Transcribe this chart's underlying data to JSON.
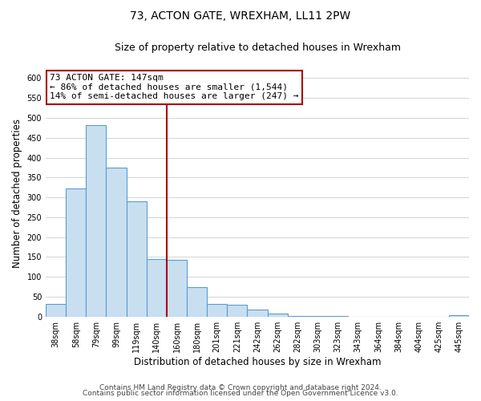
{
  "title": "73, ACTON GATE, WREXHAM, LL11 2PW",
  "subtitle": "Size of property relative to detached houses in Wrexham",
  "xlabel": "Distribution of detached houses by size in Wrexham",
  "ylabel": "Number of detached properties",
  "bar_labels": [
    "38sqm",
    "58sqm",
    "79sqm",
    "99sqm",
    "119sqm",
    "140sqm",
    "160sqm",
    "180sqm",
    "201sqm",
    "221sqm",
    "242sqm",
    "262sqm",
    "282sqm",
    "303sqm",
    "323sqm",
    "343sqm",
    "364sqm",
    "384sqm",
    "404sqm",
    "425sqm",
    "445sqm"
  ],
  "bar_values": [
    32,
    322,
    482,
    375,
    290,
    145,
    143,
    75,
    31,
    29,
    17,
    7,
    2,
    1,
    1,
    0,
    0,
    0,
    0,
    0,
    3
  ],
  "bar_color": "#c8dff0",
  "bar_edge_color": "#5b9bd5",
  "vline_x": 5.5,
  "annotation_title": "73 ACTON GATE: 147sqm",
  "annotation_line1": "← 86% of detached houses are smaller (1,544)",
  "annotation_line2": "14% of semi-detached houses are larger (247) →",
  "annotation_box_color": "#ffffff",
  "annotation_box_edge_color": "#aa0000",
  "vline_color": "#aa0000",
  "ylim": [
    0,
    620
  ],
  "yticks": [
    0,
    50,
    100,
    150,
    200,
    250,
    300,
    350,
    400,
    450,
    500,
    550,
    600
  ],
  "footnote1": "Contains HM Land Registry data © Crown copyright and database right 2024.",
  "footnote2": "Contains public sector information licensed under the Open Government Licence v3.0.",
  "bg_color": "#ffffff",
  "grid_color": "#cccccc",
  "title_fontsize": 10,
  "subtitle_fontsize": 9,
  "axis_label_fontsize": 8.5,
  "tick_fontsize": 7,
  "annotation_fontsize": 8,
  "footnote_fontsize": 6.5
}
